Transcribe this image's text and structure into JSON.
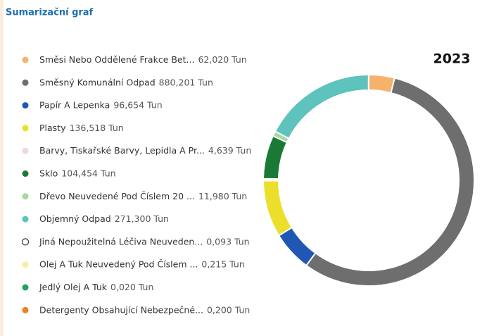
{
  "chart_data": {
    "type": "donut",
    "title": "Sumarizační graf",
    "subtitle": "2023",
    "categories": [
      "Směsi Nebo Oddělené Frakce Bet...",
      "Směsný Komunální Odpad",
      "Papír A Lepenka",
      "Plasty",
      "Barvy, Tiskařské Barvy, Lepidla A Pr...",
      "Sklo",
      "Dřevo Neuvedené Pod Číslem 20 ...",
      "Objemný Odpad",
      "Jiná Nepoužitelná Léčiva Neuveden...",
      "Olej A Tuk Neuvedený Pod Číslem ...",
      "Jedlý Olej A Tuk",
      "Detergenty Obsahující Nebezpečné..."
    ],
    "values": [
      62.02,
      880.201,
      96.654,
      136.518,
      4.639,
      104.454,
      11.98,
      271.3,
      0.093,
      0.215,
      0.02,
      0.2
    ],
    "value_labels": [
      "62,020 Tun",
      "880,201 Tun",
      "96,654 Tun",
      "136,518 Tun",
      "4,639 Tun",
      "104,454 Tun",
      "11,980 Tun",
      "271,300 Tun",
      "0,093 Tun",
      "0,215 Tun",
      "0,020 Tun",
      "0,200 Tun"
    ],
    "colors": [
      "#f5b26b",
      "#6e6e6e",
      "#2057b4",
      "#ecdf2b",
      "#f0d7dc",
      "#1a7a35",
      "#a8d8a0",
      "#5ec2bd",
      "#ffffff",
      "#f5f0a0",
      "#21a060",
      "#e8812a"
    ]
  }
}
